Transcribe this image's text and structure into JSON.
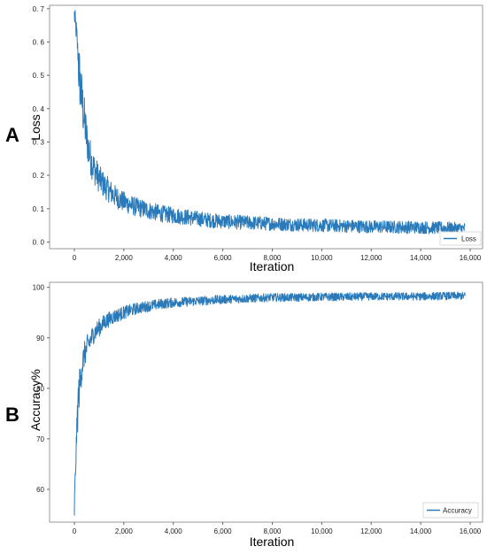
{
  "colors": {
    "series": "#2a7ab9"
  },
  "chart_data": [
    {
      "panel_label": "A",
      "type": "line",
      "xlabel": "Iteration",
      "ylabel": "Loss",
      "xlim": [
        -1000,
        16500
      ],
      "ylim": [
        -0.02,
        0.71
      ],
      "x_ticks": [
        0,
        2000,
        4000,
        6000,
        8000,
        10000,
        12000,
        14000,
        16000
      ],
      "x_tick_labels": [
        "0",
        "2,000",
        "4,000",
        "6,000",
        "8,000",
        "10,000",
        "12,000",
        "14,000",
        "16,000"
      ],
      "y_ticks": [
        0.0,
        0.1,
        0.2,
        0.3,
        0.4,
        0.5,
        0.6,
        0.7
      ],
      "y_tick_labels": [
        "0. 0",
        "0. 1",
        "0. 2",
        "0. 3",
        "0. 4",
        "0. 5",
        "0. 6",
        "0. 7"
      ],
      "legend_position": "lower-right",
      "grid": false,
      "series": [
        {
          "name": "Loss",
          "x": [
            0,
            100,
            200,
            300,
            400,
            500,
            600,
            700,
            800,
            1000,
            1200,
            1400,
            1600,
            1800,
            2000,
            2500,
            3000,
            3500,
            4000,
            4500,
            5000,
            5500,
            6000,
            7000,
            8000,
            9000,
            10000,
            11000,
            12000,
            13000,
            14000,
            15000,
            15800
          ],
          "y": [
            0.68,
            0.62,
            0.5,
            0.43,
            0.37,
            0.31,
            0.27,
            0.24,
            0.22,
            0.19,
            0.17,
            0.155,
            0.14,
            0.13,
            0.12,
            0.105,
            0.095,
            0.085,
            0.08,
            0.075,
            0.07,
            0.065,
            0.062,
            0.058,
            0.055,
            0.052,
            0.05,
            0.048,
            0.046,
            0.045,
            0.044,
            0.042,
            0.04
          ]
        }
      ]
    },
    {
      "panel_label": "B",
      "type": "line",
      "xlabel": "Iteration",
      "ylabel": "Accuracy%",
      "xlim": [
        -1000,
        16500
      ],
      "ylim": [
        53.5,
        101
      ],
      "x_ticks": [
        0,
        2000,
        4000,
        6000,
        8000,
        10000,
        12000,
        14000,
        16000
      ],
      "x_tick_labels": [
        "0",
        "2,000",
        "4,000",
        "6,000",
        "8,000",
        "10,000",
        "12,000",
        "14,000",
        "16,000"
      ],
      "y_ticks": [
        60,
        70,
        80,
        90,
        100
      ],
      "y_tick_labels": [
        "60",
        "70",
        "80",
        "90",
        "100"
      ],
      "legend_position": "lower-right",
      "grid": false,
      "series": [
        {
          "name": "Accuracy",
          "x": [
            0,
            50,
            100,
            150,
            200,
            300,
            400,
            500,
            600,
            800,
            1000,
            1200,
            1500,
            2000,
            2500,
            3000,
            3500,
            4000,
            5000,
            6000,
            7000,
            8000,
            9000,
            10000,
            11000,
            12000,
            13000,
            14000,
            15000,
            15800
          ],
          "y": [
            56,
            64,
            72,
            77,
            80,
            84,
            86.5,
            88,
            89,
            91,
            92,
            93,
            94,
            95,
            95.8,
            96.3,
            96.7,
            97,
            97.3,
            97.6,
            97.8,
            98,
            98,
            98.1,
            98.1,
            98.2,
            98.2,
            98.2,
            98.3,
            98.3
          ]
        }
      ]
    }
  ]
}
